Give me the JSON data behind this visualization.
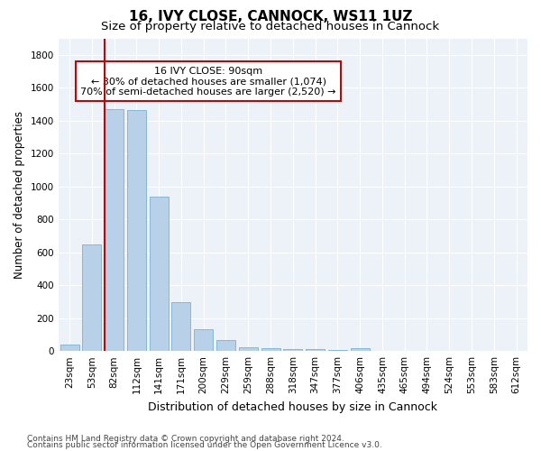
{
  "title": "16, IVY CLOSE, CANNOCK, WS11 1UZ",
  "subtitle": "Size of property relative to detached houses in Cannock",
  "xlabel": "Distribution of detached houses by size in Cannock",
  "ylabel": "Number of detached properties",
  "categories": [
    "23sqm",
    "53sqm",
    "82sqm",
    "112sqm",
    "141sqm",
    "171sqm",
    "200sqm",
    "229sqm",
    "259sqm",
    "288sqm",
    "318sqm",
    "347sqm",
    "377sqm",
    "406sqm",
    "435sqm",
    "465sqm",
    "494sqm",
    "524sqm",
    "553sqm",
    "583sqm",
    "612sqm"
  ],
  "values": [
    40,
    650,
    1470,
    1465,
    940,
    295,
    130,
    65,
    25,
    15,
    12,
    10,
    8,
    15,
    0,
    0,
    0,
    0,
    0,
    0,
    0
  ],
  "bar_color": "#b8d0e8",
  "bar_edgecolor": "#7aafd4",
  "vline_x_index": 2,
  "vline_color": "#cc0000",
  "annotation_text": "16 IVY CLOSE: 90sqm\n← 30% of detached houses are smaller (1,074)\n70% of semi-detached houses are larger (2,520) →",
  "annotation_box_facecolor": "#ffffff",
  "annotation_box_edgecolor": "#cc0000",
  "ylim": [
    0,
    1900
  ],
  "yticks": [
    0,
    200,
    400,
    600,
    800,
    1000,
    1200,
    1400,
    1600,
    1800
  ],
  "plot_bg_color": "#edf2f9",
  "fig_bg_color": "#ffffff",
  "grid_color": "#ffffff",
  "footer1": "Contains HM Land Registry data © Crown copyright and database right 2024.",
  "footer2": "Contains public sector information licensed under the Open Government Licence v3.0.",
  "title_fontsize": 11,
  "subtitle_fontsize": 9.5,
  "xlabel_fontsize": 9,
  "ylabel_fontsize": 8.5,
  "tick_fontsize": 7.5,
  "annotation_fontsize": 8,
  "footer_fontsize": 6.5
}
